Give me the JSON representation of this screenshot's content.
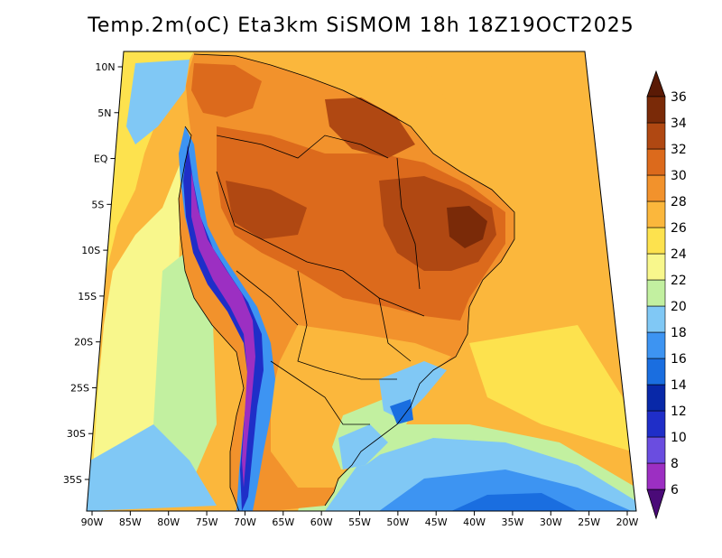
{
  "title": "Temp.2m(oC) Eta3km SiSMOM 18h 18Z19OCT2025",
  "map": {
    "lat_ticks": [
      {
        "label": "10N",
        "lat": 10
      },
      {
        "label": "5N",
        "lat": 5
      },
      {
        "label": "EQ",
        "lat": 0
      },
      {
        "label": "5S",
        "lat": -5
      },
      {
        "label": "10S",
        "lat": -10
      },
      {
        "label": "15S",
        "lat": -15
      },
      {
        "label": "20S",
        "lat": -20
      },
      {
        "label": "25S",
        "lat": -25
      },
      {
        "label": "30S",
        "lat": -30
      },
      {
        "label": "35S",
        "lat": -35
      }
    ],
    "lon_ticks": [
      {
        "label": "90W",
        "lon": -90
      },
      {
        "label": "85W",
        "lon": -85
      },
      {
        "label": "80W",
        "lon": -80
      },
      {
        "label": "75W",
        "lon": -75
      },
      {
        "label": "70W",
        "lon": -70
      },
      {
        "label": "65W",
        "lon": -65
      },
      {
        "label": "60W",
        "lon": -60
      },
      {
        "label": "55W",
        "lon": -55
      },
      {
        "label": "50W",
        "lon": -50
      },
      {
        "label": "45W",
        "lon": -45
      },
      {
        "label": "40W",
        "lon": -40
      },
      {
        "label": "35W",
        "lon": -35
      },
      {
        "label": "30W",
        "lon": -30
      },
      {
        "label": "25W",
        "lon": -25
      },
      {
        "label": "20W",
        "lon": -20
      }
    ]
  },
  "colorbar": {
    "levels": [
      {
        "label": "6",
        "color": "#6e0b8e"
      },
      {
        "label": "8",
        "color": "#9c2fc2"
      },
      {
        "label": "10",
        "color": "#6a4de0"
      },
      {
        "label": "12",
        "color": "#1f2ec8"
      },
      {
        "label": "14",
        "color": "#0828a8"
      },
      {
        "label": "16",
        "color": "#1a6ee0"
      },
      {
        "label": "18",
        "color": "#3d94f2"
      },
      {
        "label": "20",
        "color": "#80c8f5"
      },
      {
        "label": "22",
        "color": "#c2f0a0"
      },
      {
        "label": "24",
        "color": "#f8f78c"
      },
      {
        "label": "26",
        "color": "#fde24e"
      },
      {
        "label": "28",
        "color": "#fbb73c"
      },
      {
        "label": "30",
        "color": "#f2922c"
      },
      {
        "label": "32",
        "color": "#dc6a1c"
      },
      {
        "label": "34",
        "color": "#b04812"
      },
      {
        "label": "36",
        "color": "#7a2a08"
      }
    ],
    "bottom_color": "#4a0a78",
    "top_color": "#5a1a05"
  }
}
